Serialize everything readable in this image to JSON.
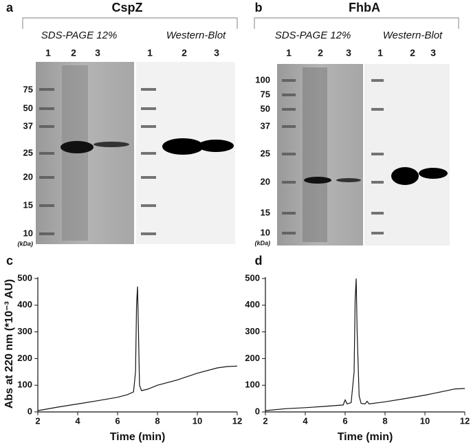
{
  "panels": [
    {
      "letter": "a",
      "protein": "CspZ",
      "gels": [
        {
          "title": "SDS-PAGE 12%",
          "lanes": [
            "1",
            "2",
            "3"
          ]
        },
        {
          "title": "Western-Blot",
          "lanes": [
            "1",
            "2",
            "3"
          ]
        }
      ],
      "markers": [
        "75",
        "50",
        "37",
        "25",
        "20",
        "15",
        "10"
      ],
      "unit": "(kDa)"
    },
    {
      "letter": "b",
      "protein": "FhbA",
      "gels": [
        {
          "title": "SDS-PAGE 12%",
          "lanes": [
            "1",
            "2",
            "3"
          ]
        },
        {
          "title": "Western-Blot",
          "lanes": [
            "1",
            "2",
            "3"
          ]
        }
      ],
      "markers": [
        "100",
        "75",
        "50",
        "37",
        "25",
        "20",
        "15",
        "10"
      ],
      "unit": "(kDa)"
    }
  ],
  "chart_data": [
    {
      "type": "line",
      "letter": "c",
      "xlabel": "Time (min)",
      "ylabel": "Abs at 220 nm (*10⁻³ AU)",
      "x": [
        2,
        3,
        4,
        5,
        6,
        6.5,
        6.8,
        6.9,
        6.95,
        7.0,
        7.05,
        7.1,
        7.2,
        7.5,
        8,
        9,
        10,
        11,
        11.5,
        12
      ],
      "values": [
        5,
        18,
        30,
        42,
        55,
        65,
        75,
        150,
        400,
        470,
        300,
        100,
        80,
        85,
        100,
        120,
        145,
        165,
        170,
        172
      ],
      "color": "#111111",
      "xlim": [
        2,
        12
      ],
      "ylim": [
        0,
        500
      ],
      "xticks": [
        2,
        4,
        6,
        8,
        10,
        12
      ],
      "yticks": [
        0,
        100,
        200,
        300,
        400,
        500
      ]
    },
    {
      "type": "line",
      "letter": "d",
      "xlabel": "Time (min)",
      "x": [
        2,
        3,
        4,
        5,
        5.9,
        6.0,
        6.1,
        6.3,
        6.45,
        6.5,
        6.55,
        6.6,
        6.7,
        6.8,
        7.0,
        7.1,
        7.2,
        8,
        9,
        10,
        11,
        11.5,
        12
      ],
      "values": [
        5,
        12,
        16,
        21,
        26,
        45,
        30,
        35,
        150,
        420,
        500,
        300,
        60,
        32,
        30,
        40,
        30,
        38,
        50,
        63,
        78,
        86,
        88
      ],
      "color": "#111111",
      "xlim": [
        2,
        12
      ],
      "ylim": [
        0,
        500
      ],
      "xticks": [
        2,
        4,
        6,
        8,
        10,
        12
      ],
      "yticks": [
        0,
        100,
        200,
        300,
        400,
        500
      ]
    }
  ]
}
